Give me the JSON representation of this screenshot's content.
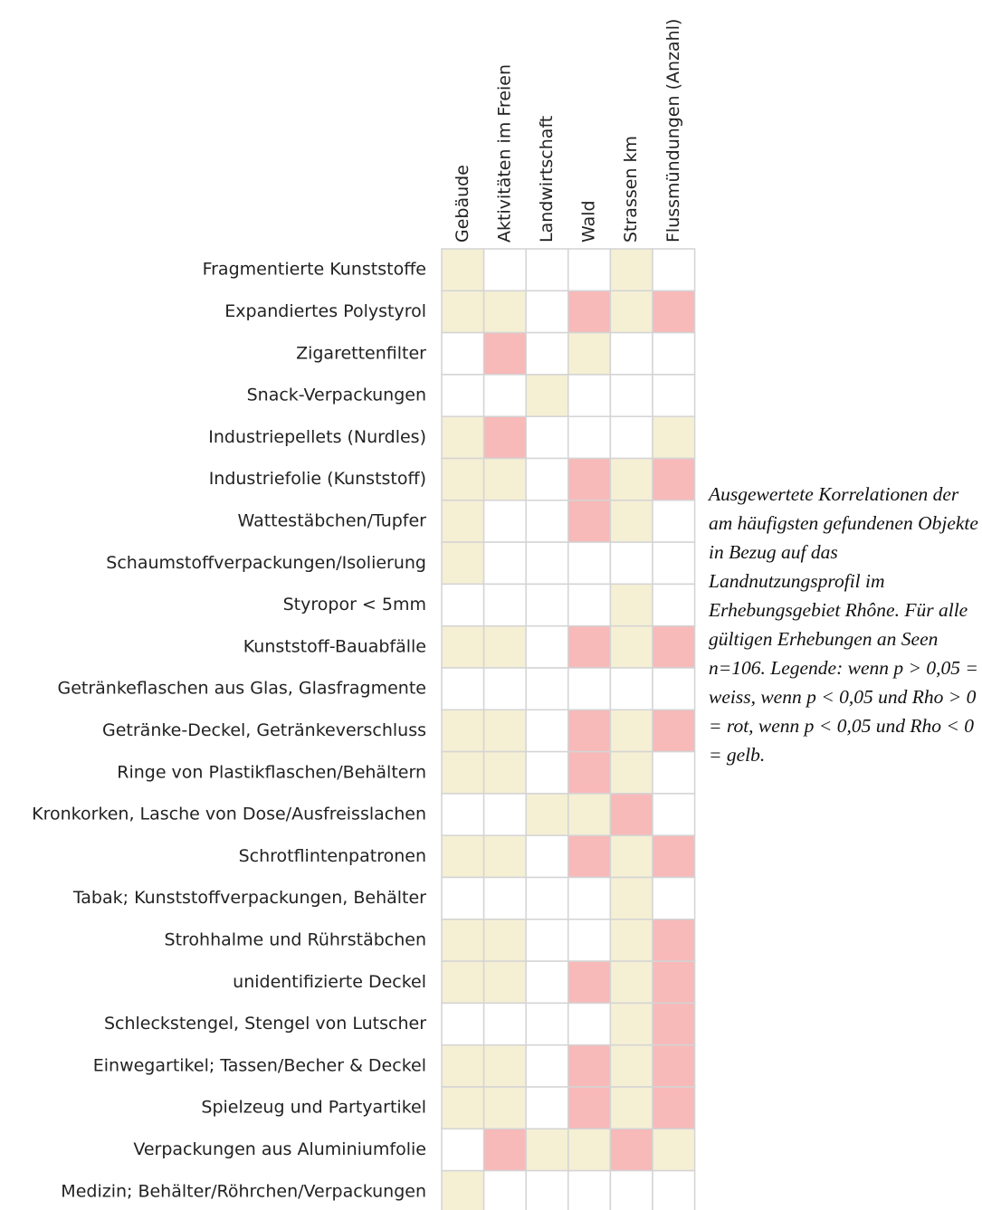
{
  "chart_data": {
    "type": "heatmap",
    "columns": [
      "Gebäude",
      "Aktivitäten im Freien",
      "Landwirtschaft",
      "Wald",
      "Strassen km",
      "Flussmündungen (Anzahl)"
    ],
    "rows": [
      "Fragmentierte Kunststoffe",
      "Expandiertes Polystyrol",
      "Zigarettenfilter",
      "Snack-Verpackungen",
      "Industriepellets (Nurdles)",
      "Industriefolie (Kunststoff)",
      "Wattestäbchen/Tupfer",
      "Schaumstoffverpackungen/Isolierung",
      "Styropor < 5mm",
      "Kunststoff-Bauabfälle",
      "Getränkeflaschen aus Glas, Glasfragmente",
      "Getränke-Deckel, Getränkeverschluss",
      "Ringe von Plastikflaschen/Behältern",
      "Kronkorken, Lasche von Dose/Ausfreisslachen",
      "Schrotflintenpatronen",
      "Tabak; Kunststoffverpackungen, Behälter",
      "Strohhalme und Rührstäbchen",
      "unidentifizierte Deckel",
      "Schleckstengel, Stengel von Lutscher",
      "Einwegartikel; Tassen/Becher & Deckel",
      "Spielzeug und Partyartikel",
      "Verpackungen aus Aluminiumfolie",
      "Medizin; Behälter/Röhrchen/Verpackungen"
    ],
    "values": [
      [
        -1,
        0,
        0,
        0,
        -1,
        0
      ],
      [
        -1,
        -1,
        0,
        1,
        -1,
        1
      ],
      [
        0,
        1,
        0,
        -1,
        0,
        0
      ],
      [
        0,
        0,
        -1,
        0,
        0,
        0
      ],
      [
        -1,
        1,
        0,
        0,
        0,
        -1
      ],
      [
        -1,
        -1,
        0,
        1,
        -1,
        1
      ],
      [
        -1,
        0,
        0,
        1,
        -1,
        0
      ],
      [
        -1,
        0,
        0,
        0,
        0,
        0
      ],
      [
        0,
        0,
        0,
        0,
        -1,
        0
      ],
      [
        -1,
        -1,
        0,
        1,
        -1,
        1
      ],
      [
        0,
        0,
        0,
        0,
        0,
        0
      ],
      [
        -1,
        -1,
        0,
        1,
        -1,
        1
      ],
      [
        -1,
        -1,
        0,
        1,
        -1,
        0
      ],
      [
        0,
        0,
        -1,
        -1,
        1,
        0
      ],
      [
        -1,
        -1,
        0,
        1,
        -1,
        1
      ],
      [
        0,
        0,
        0,
        0,
        -1,
        0
      ],
      [
        -1,
        -1,
        0,
        0,
        -1,
        1
      ],
      [
        -1,
        -1,
        0,
        1,
        -1,
        1
      ],
      [
        0,
        0,
        0,
        0,
        -1,
        1
      ],
      [
        -1,
        -1,
        0,
        1,
        -1,
        1
      ],
      [
        -1,
        -1,
        0,
        1,
        -1,
        1
      ],
      [
        0,
        1,
        -1,
        -1,
        1,
        -1
      ],
      [
        -1,
        0,
        0,
        0,
        0,
        0
      ]
    ],
    "color_scale": [
      {
        "value": -1,
        "color": "#f5efd4"
      },
      {
        "value": 0,
        "color": "#ffffff"
      },
      {
        "value": 1,
        "color": "#f8b9b9"
      }
    ],
    "caption": "Ausgewertete Korrelationen der am häufigsten gefundenen Objekte in Bezug auf das Landnutzungsprofil im Erhebungsgebiet Rhône. Für alle gültigen Erhebungen an Seen n=106. Legende: wenn p > 0,05 = weiss, wenn p < 0,05 und Rho > 0 = rot, wenn p < 0,05 und Rho < 0 = gelb."
  }
}
